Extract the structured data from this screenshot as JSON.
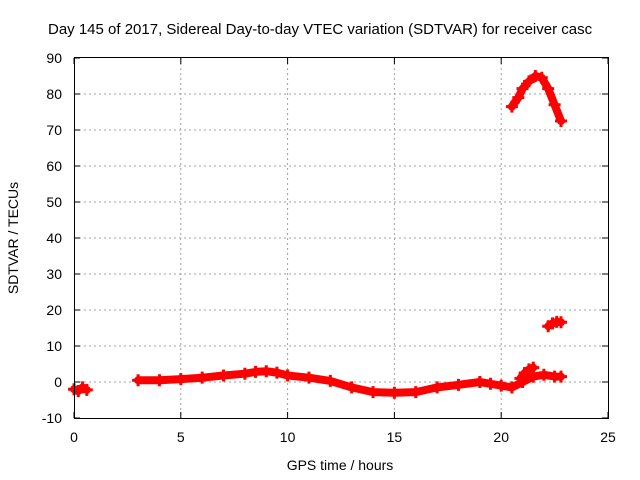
{
  "chart_data": {
    "type": "scatter",
    "title": "Day 145 of 2017, Sidereal Day-to-day VTEC variation (SDTVAR) for receiver casc",
    "xlabel": "GPS time / hours",
    "ylabel": "SDTVAR / TECUs",
    "xlim": [
      0,
      25
    ],
    "ylim": [
      -10,
      90
    ],
    "xticks": [
      "0",
      "5",
      "10",
      "15",
      "20",
      "25"
    ],
    "yticks": [
      "-10",
      "0",
      "10",
      "20",
      "30",
      "40",
      "50",
      "60",
      "70",
      "80",
      "90"
    ],
    "grid": true,
    "marker": "+",
    "color": "#ff0000",
    "series": [
      {
        "name": "segment-early",
        "x": [
          0.0,
          0.2,
          0.4,
          0.6
        ],
        "y": [
          -2.0,
          -2.5,
          -1.5,
          -2.2
        ]
      },
      {
        "name": "segment-main",
        "x": [
          3.0,
          4.0,
          5.0,
          6.0,
          7.0,
          8.0,
          8.5,
          9.0,
          9.5,
          10.0,
          11.0,
          12.0,
          13.0,
          14.0,
          15.0,
          16.0,
          17.0,
          18.0,
          19.0,
          19.5,
          20.0,
          20.5,
          21.0,
          21.5,
          22.0,
          22.5,
          22.8
        ],
        "y": [
          0.5,
          0.5,
          0.8,
          1.2,
          1.8,
          2.3,
          2.8,
          3.0,
          2.6,
          1.8,
          1.2,
          0.3,
          -1.5,
          -2.8,
          -3.0,
          -2.8,
          -1.5,
          -0.8,
          0.0,
          -0.5,
          -1.0,
          -1.5,
          0.0,
          1.5,
          2.0,
          1.5,
          1.5
        ]
      },
      {
        "name": "segment-spike",
        "x": [
          20.9,
          21.1,
          21.3,
          21.5
        ],
        "y": [
          1.0,
          2.5,
          3.5,
          4.0
        ]
      },
      {
        "name": "segment-high-arc",
        "x": [
          20.5,
          20.8,
          21.0,
          21.3,
          21.6,
          21.9,
          22.2,
          22.5,
          22.8
        ],
        "y": [
          76.5,
          79.0,
          81.5,
          83.5,
          85.0,
          84.5,
          81.5,
          77.0,
          72.5
        ]
      },
      {
        "name": "segment-mid",
        "x": [
          22.2,
          22.4,
          22.6,
          22.8
        ],
        "y": [
          15.5,
          16.3,
          16.7,
          16.6
        ]
      }
    ]
  }
}
